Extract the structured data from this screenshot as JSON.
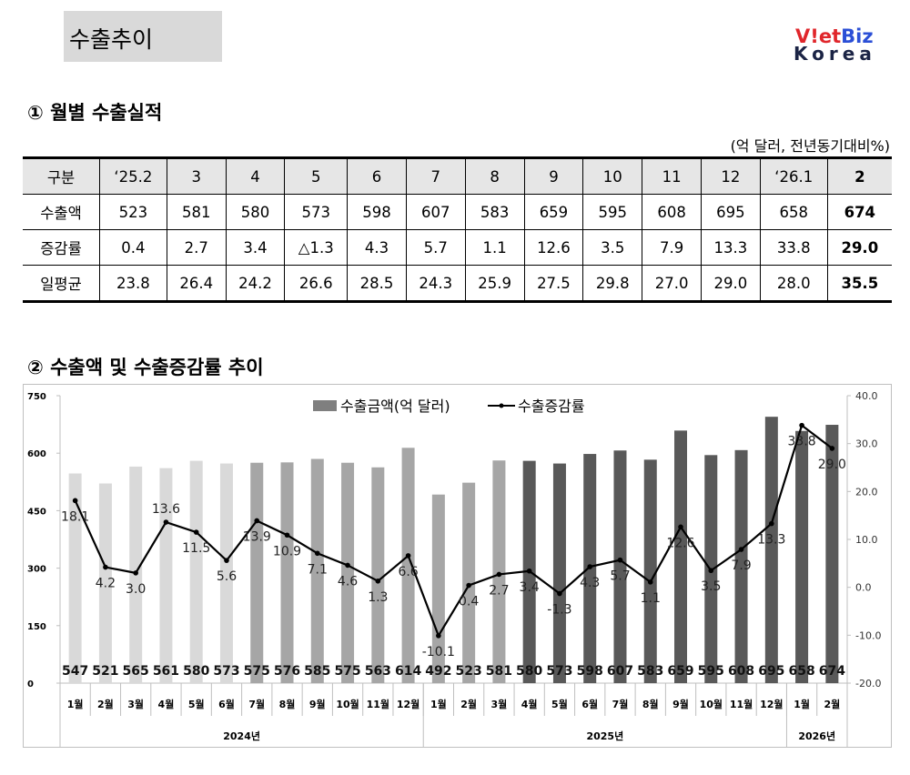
{
  "page_title": "수출추이",
  "logo": {
    "line1_a": "V!et",
    "line1_b": "Biz",
    "line2": "Korea"
  },
  "section1": {
    "heading": "① 월별 수출실적",
    "unit": "(억 달러, 전년동기대비%)",
    "columns": [
      "구분",
      "‘25.2",
      "3",
      "4",
      "5",
      "6",
      "7",
      "8",
      "9",
      "10",
      "11",
      "12",
      "‘26.1",
      "2"
    ],
    "rows": [
      [
        "수출액",
        "523",
        "581",
        "580",
        "573",
        "598",
        "607",
        "583",
        "659",
        "595",
        "608",
        "695",
        "658",
        "674"
      ],
      [
        "증감률",
        "0.4",
        "2.7",
        "3.4",
        "△1.3",
        "4.3",
        "5.7",
        "1.1",
        "12.6",
        "3.5",
        "7.9",
        "13.3",
        "33.8",
        "29.0"
      ],
      [
        "일평균",
        "23.8",
        "26.4",
        "24.2",
        "26.6",
        "28.5",
        "24.3",
        "25.9",
        "27.5",
        "29.8",
        "27.0",
        "29.0",
        "28.0",
        "35.5"
      ]
    ]
  },
  "section2": {
    "heading": "② 수출액 및 수출증감률 추이"
  },
  "chart_data": {
    "type": "bar+line",
    "categories": [
      "1월",
      "2월",
      "3월",
      "4월",
      "5월",
      "6월",
      "7월",
      "8월",
      "9월",
      "10월",
      "11월",
      "12월",
      "1월",
      "2월",
      "3월",
      "4월",
      "5월",
      "6월",
      "7월",
      "8월",
      "9월",
      "10월",
      "11월",
      "12월",
      "1월",
      "2월"
    ],
    "year_groups": [
      {
        "label": "2024년",
        "count": 12
      },
      {
        "label": "2025년",
        "count": 12
      },
      {
        "label": "2026년",
        "count": 2
      }
    ],
    "series": [
      {
        "name": "수출금액(억 달러)",
        "type": "bar",
        "axis": "left",
        "values": [
          547,
          521,
          565,
          561,
          580,
          573,
          575,
          576,
          585,
          575,
          563,
          614,
          492,
          523,
          581,
          580,
          573,
          598,
          607,
          583,
          659,
          595,
          608,
          695,
          658,
          674
        ],
        "labels": [
          "547",
          "521",
          "565",
          "561",
          "580",
          "573",
          "575",
          "576",
          "585",
          "575",
          "563",
          "614",
          "492",
          "523",
          "581",
          "580",
          "573",
          "598",
          "607",
          "583",
          "659",
          "595",
          "608",
          "695",
          "658",
          "674"
        ],
        "color_index": [
          0,
          0,
          0,
          0,
          0,
          0,
          1,
          1,
          1,
          1,
          1,
          1,
          1,
          1,
          1,
          2,
          2,
          2,
          2,
          2,
          2,
          2,
          2,
          2,
          2,
          2
        ]
      },
      {
        "name": "수출증감률",
        "type": "line",
        "axis": "right",
        "values": [
          18.1,
          4.2,
          3.0,
          13.6,
          11.5,
          5.6,
          13.9,
          10.9,
          7.1,
          4.6,
          1.3,
          6.6,
          -10.1,
          0.4,
          2.7,
          3.4,
          -1.3,
          4.3,
          5.7,
          1.1,
          12.6,
          3.5,
          7.9,
          13.3,
          33.8,
          29.0
        ],
        "labels": [
          "18.1",
          "4.2",
          "3.0",
          "13.6",
          "11.5",
          "5.6",
          "13.9",
          "10.9",
          "7.1",
          "4.6",
          "1.3",
          "6.6",
          "-10.1",
          "0.4",
          "2.7",
          "3.4",
          "-1.3",
          "4.3",
          "5.7",
          "1.1",
          "12.6",
          "3.5",
          "7.9",
          "13.3",
          "33.8",
          "29.0"
        ]
      }
    ],
    "colors": {
      "bar": [
        "#d9d9d9",
        "#a6a6a6",
        "#595959"
      ],
      "legend_bar": "#7f7f7f",
      "line": "#000000"
    },
    "y_left": {
      "min": 0,
      "max": 750,
      "ticks": [
        "0",
        "150",
        "300",
        "450",
        "600",
        "750"
      ]
    },
    "y_right": {
      "min": -20,
      "max": 40,
      "ticks": [
        "-20.0",
        "-10.0",
        "0.0",
        "10.0",
        "20.0",
        "30.0",
        "40.0"
      ]
    },
    "legend_position": "top-center",
    "grid": false
  }
}
